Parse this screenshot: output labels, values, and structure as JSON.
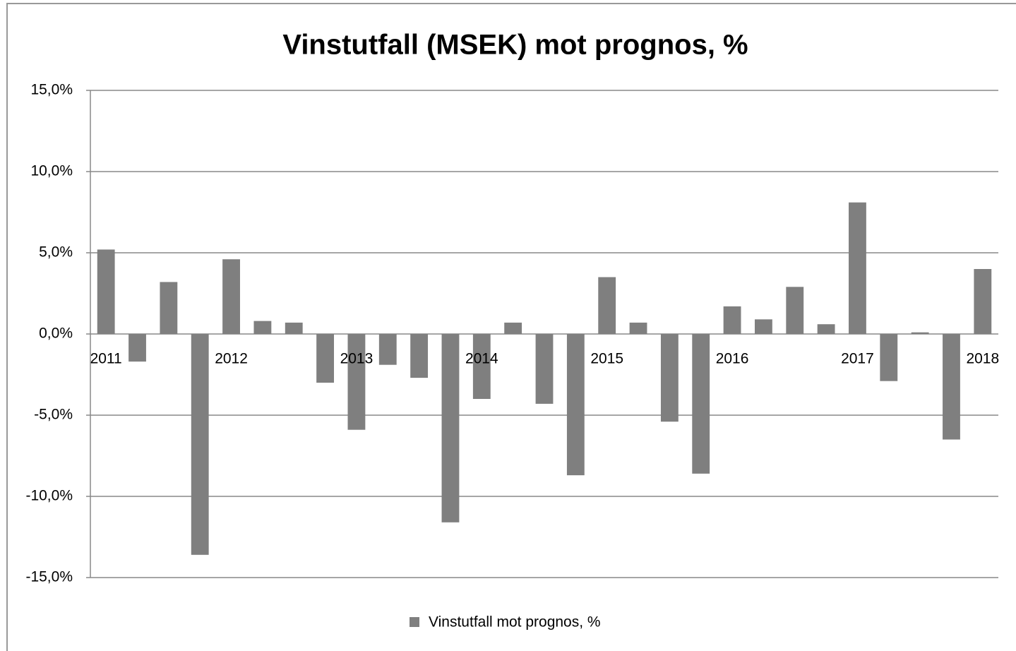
{
  "chart_data": {
    "type": "bar",
    "title": "Vinstutfall (MSEK) mot prognos, %",
    "categories": [
      "2011",
      null,
      null,
      null,
      "2012",
      null,
      null,
      null,
      "2013",
      null,
      null,
      null,
      "2014",
      null,
      null,
      null,
      "2015",
      null,
      null,
      null,
      "2016",
      null,
      null,
      null,
      "2017",
      null,
      null,
      null,
      "2018"
    ],
    "series": [
      {
        "name": "Vinstutfall mot prognos, %",
        "color": "#7f7f7f",
        "values": [
          5.2,
          -1.7,
          3.2,
          -13.6,
          4.6,
          0.8,
          0.7,
          -3.0,
          -5.9,
          -1.9,
          -2.7,
          -11.6,
          -4.0,
          0.7,
          -4.3,
          -8.7,
          3.5,
          0.7,
          -5.4,
          -8.6,
          1.7,
          0.9,
          2.9,
          0.6,
          8.1,
          -2.9,
          0.1,
          -6.5,
          4.0
        ]
      }
    ],
    "ylim": [
      -15,
      15
    ],
    "yticks": [
      {
        "value": -15,
        "label": "-15,0%"
      },
      {
        "value": -10,
        "label": "-10,0%"
      },
      {
        "value": -5,
        "label": "-5,0%"
      },
      {
        "value": 0,
        "label": "0,0%"
      },
      {
        "value": 5,
        "label": "5,0%"
      },
      {
        "value": 10,
        "label": "10,0%"
      },
      {
        "value": 15,
        "label": "15,0%"
      }
    ],
    "grid": true,
    "legend": "bottom"
  }
}
